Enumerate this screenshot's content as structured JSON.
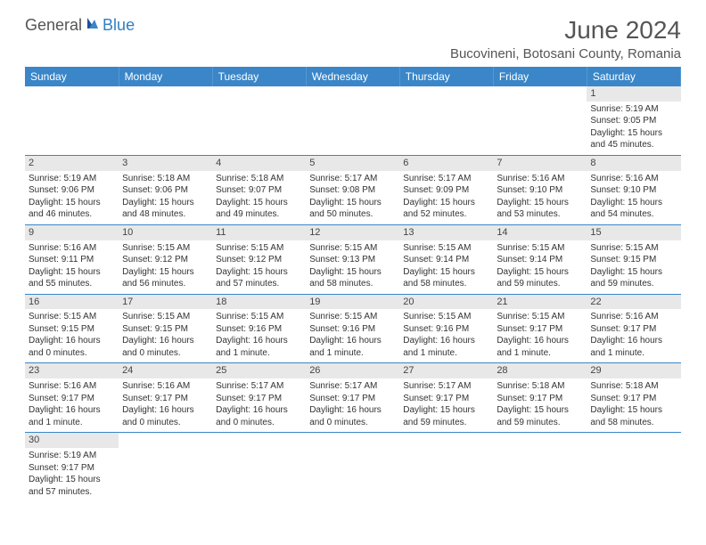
{
  "logo": {
    "general": "General",
    "blue": "Blue"
  },
  "title": "June 2024",
  "location": "Bucovineni, Botosani County, Romania",
  "colors": {
    "header_bg": "#3a86c8",
    "header_text": "#ffffff",
    "daynum_bg": "#e8e8e8",
    "cell_border": "#3a86c8",
    "body_text": "#333333",
    "logo_blue": "#2f7fc2",
    "logo_gray": "#555555"
  },
  "day_headers": [
    "Sunday",
    "Monday",
    "Tuesday",
    "Wednesday",
    "Thursday",
    "Friday",
    "Saturday"
  ],
  "weeks": [
    [
      null,
      null,
      null,
      null,
      null,
      null,
      {
        "n": "1",
        "sr": "Sunrise: 5:19 AM",
        "ss": "Sunset: 9:05 PM",
        "dl": "Daylight: 15 hours and 45 minutes."
      }
    ],
    [
      {
        "n": "2",
        "sr": "Sunrise: 5:19 AM",
        "ss": "Sunset: 9:06 PM",
        "dl": "Daylight: 15 hours and 46 minutes."
      },
      {
        "n": "3",
        "sr": "Sunrise: 5:18 AM",
        "ss": "Sunset: 9:06 PM",
        "dl": "Daylight: 15 hours and 48 minutes."
      },
      {
        "n": "4",
        "sr": "Sunrise: 5:18 AM",
        "ss": "Sunset: 9:07 PM",
        "dl": "Daylight: 15 hours and 49 minutes."
      },
      {
        "n": "5",
        "sr": "Sunrise: 5:17 AM",
        "ss": "Sunset: 9:08 PM",
        "dl": "Daylight: 15 hours and 50 minutes."
      },
      {
        "n": "6",
        "sr": "Sunrise: 5:17 AM",
        "ss": "Sunset: 9:09 PM",
        "dl": "Daylight: 15 hours and 52 minutes."
      },
      {
        "n": "7",
        "sr": "Sunrise: 5:16 AM",
        "ss": "Sunset: 9:10 PM",
        "dl": "Daylight: 15 hours and 53 minutes."
      },
      {
        "n": "8",
        "sr": "Sunrise: 5:16 AM",
        "ss": "Sunset: 9:10 PM",
        "dl": "Daylight: 15 hours and 54 minutes."
      }
    ],
    [
      {
        "n": "9",
        "sr": "Sunrise: 5:16 AM",
        "ss": "Sunset: 9:11 PM",
        "dl": "Daylight: 15 hours and 55 minutes."
      },
      {
        "n": "10",
        "sr": "Sunrise: 5:15 AM",
        "ss": "Sunset: 9:12 PM",
        "dl": "Daylight: 15 hours and 56 minutes."
      },
      {
        "n": "11",
        "sr": "Sunrise: 5:15 AM",
        "ss": "Sunset: 9:12 PM",
        "dl": "Daylight: 15 hours and 57 minutes."
      },
      {
        "n": "12",
        "sr": "Sunrise: 5:15 AM",
        "ss": "Sunset: 9:13 PM",
        "dl": "Daylight: 15 hours and 58 minutes."
      },
      {
        "n": "13",
        "sr": "Sunrise: 5:15 AM",
        "ss": "Sunset: 9:14 PM",
        "dl": "Daylight: 15 hours and 58 minutes."
      },
      {
        "n": "14",
        "sr": "Sunrise: 5:15 AM",
        "ss": "Sunset: 9:14 PM",
        "dl": "Daylight: 15 hours and 59 minutes."
      },
      {
        "n": "15",
        "sr": "Sunrise: 5:15 AM",
        "ss": "Sunset: 9:15 PM",
        "dl": "Daylight: 15 hours and 59 minutes."
      }
    ],
    [
      {
        "n": "16",
        "sr": "Sunrise: 5:15 AM",
        "ss": "Sunset: 9:15 PM",
        "dl": "Daylight: 16 hours and 0 minutes."
      },
      {
        "n": "17",
        "sr": "Sunrise: 5:15 AM",
        "ss": "Sunset: 9:15 PM",
        "dl": "Daylight: 16 hours and 0 minutes."
      },
      {
        "n": "18",
        "sr": "Sunrise: 5:15 AM",
        "ss": "Sunset: 9:16 PM",
        "dl": "Daylight: 16 hours and 1 minute."
      },
      {
        "n": "19",
        "sr": "Sunrise: 5:15 AM",
        "ss": "Sunset: 9:16 PM",
        "dl": "Daylight: 16 hours and 1 minute."
      },
      {
        "n": "20",
        "sr": "Sunrise: 5:15 AM",
        "ss": "Sunset: 9:16 PM",
        "dl": "Daylight: 16 hours and 1 minute."
      },
      {
        "n": "21",
        "sr": "Sunrise: 5:15 AM",
        "ss": "Sunset: 9:17 PM",
        "dl": "Daylight: 16 hours and 1 minute."
      },
      {
        "n": "22",
        "sr": "Sunrise: 5:16 AM",
        "ss": "Sunset: 9:17 PM",
        "dl": "Daylight: 16 hours and 1 minute."
      }
    ],
    [
      {
        "n": "23",
        "sr": "Sunrise: 5:16 AM",
        "ss": "Sunset: 9:17 PM",
        "dl": "Daylight: 16 hours and 1 minute."
      },
      {
        "n": "24",
        "sr": "Sunrise: 5:16 AM",
        "ss": "Sunset: 9:17 PM",
        "dl": "Daylight: 16 hours and 0 minutes."
      },
      {
        "n": "25",
        "sr": "Sunrise: 5:17 AM",
        "ss": "Sunset: 9:17 PM",
        "dl": "Daylight: 16 hours and 0 minutes."
      },
      {
        "n": "26",
        "sr": "Sunrise: 5:17 AM",
        "ss": "Sunset: 9:17 PM",
        "dl": "Daylight: 16 hours and 0 minutes."
      },
      {
        "n": "27",
        "sr": "Sunrise: 5:17 AM",
        "ss": "Sunset: 9:17 PM",
        "dl": "Daylight: 15 hours and 59 minutes."
      },
      {
        "n": "28",
        "sr": "Sunrise: 5:18 AM",
        "ss": "Sunset: 9:17 PM",
        "dl": "Daylight: 15 hours and 59 minutes."
      },
      {
        "n": "29",
        "sr": "Sunrise: 5:18 AM",
        "ss": "Sunset: 9:17 PM",
        "dl": "Daylight: 15 hours and 58 minutes."
      }
    ],
    [
      {
        "n": "30",
        "sr": "Sunrise: 5:19 AM",
        "ss": "Sunset: 9:17 PM",
        "dl": "Daylight: 15 hours and 57 minutes."
      },
      null,
      null,
      null,
      null,
      null,
      null
    ]
  ]
}
